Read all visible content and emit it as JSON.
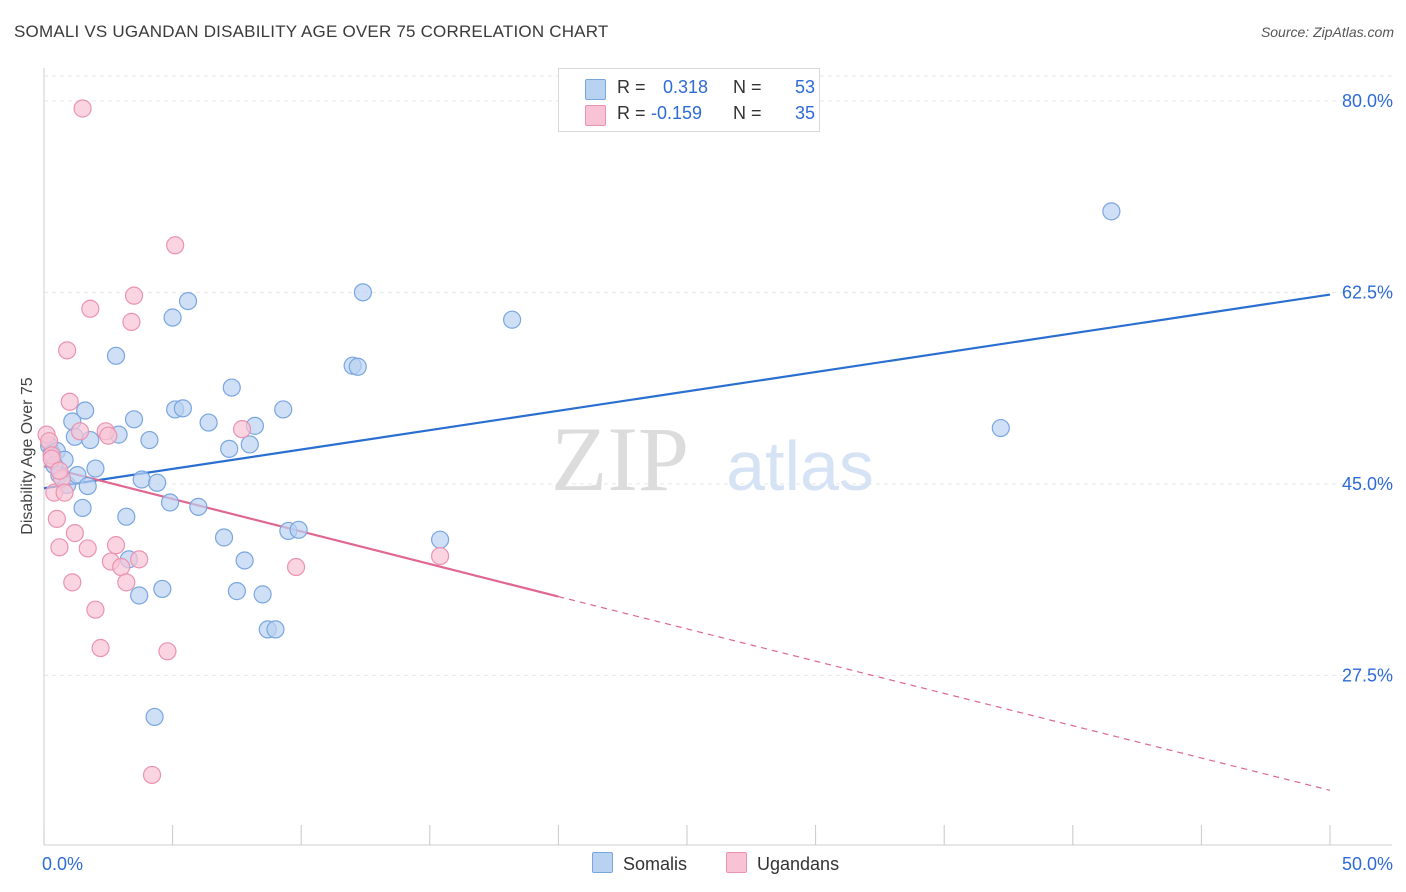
{
  "title": "SOMALI VS UGANDAN DISABILITY AGE OVER 75 CORRELATION CHART",
  "source": "Source: ZipAtlas.com",
  "watermark": {
    "zip": "ZIP",
    "atlas": "atlas"
  },
  "legend_top": {
    "r_label": "R =",
    "n_label": "N =",
    "rows": [
      {
        "r": "0.318",
        "n": "53"
      },
      {
        "r": "-0.159",
        "n": "35"
      }
    ]
  },
  "legend_bottom": [
    {
      "label": "Somalis"
    },
    {
      "label": "Ugandans"
    }
  ],
  "colors": {
    "somali_fill": "#b9d2f2",
    "somali_stroke": "#7aa6e0",
    "somali_line": "#2a6fd0",
    "ugandan_fill": "#f8c3d4",
    "ugandan_stroke": "#ea93b0",
    "ugandan_line": "#e0678f",
    "tick_text": "#2f6bd6",
    "grid": "#e6e6e6"
  },
  "chart_data": {
    "type": "scatter",
    "title": "SOMALI VS UGANDAN DISABILITY AGE OVER 75 CORRELATION CHART",
    "xlabel": "",
    "ylabel": "Disability Age Over 75",
    "xlim": [
      0,
      50
    ],
    "ylim": [
      12,
      83
    ],
    "x_tick_labels": [
      {
        "value": 0,
        "label": "0.0%"
      },
      {
        "value": 50,
        "label": "50.0%"
      }
    ],
    "y_tick_labels": [
      {
        "value": 80,
        "label": "80.0%"
      },
      {
        "value": 62.5,
        "label": "62.5%"
      },
      {
        "value": 45,
        "label": "45.0%"
      },
      {
        "value": 27.5,
        "label": "27.5%"
      }
    ],
    "x_minor_ticks": [
      0,
      5,
      10,
      15,
      20,
      25,
      30,
      35,
      40,
      45,
      50
    ],
    "series": [
      {
        "name": "Somalis",
        "r": 0.318,
        "n": 53,
        "trend": {
          "x": [
            0,
            50
          ],
          "y": [
            44.6,
            62.3
          ],
          "dashed_to": null
        },
        "points": [
          [
            0.2,
            48.5
          ],
          [
            0.3,
            47.8
          ],
          [
            0.5,
            48.0
          ],
          [
            0.6,
            45.8
          ],
          [
            0.8,
            47.2
          ],
          [
            0.9,
            44.9
          ],
          [
            1.1,
            50.7
          ],
          [
            1.2,
            49.3
          ],
          [
            1.3,
            45.8
          ],
          [
            1.5,
            42.8
          ],
          [
            1.6,
            51.7
          ],
          [
            1.7,
            44.8
          ],
          [
            1.8,
            49.0
          ],
          [
            2.0,
            46.4
          ],
          [
            2.8,
            56.7
          ],
          [
            2.9,
            49.5
          ],
          [
            3.2,
            42.0
          ],
          [
            3.3,
            38.1
          ],
          [
            3.5,
            50.9
          ],
          [
            3.7,
            34.8
          ],
          [
            3.8,
            45.4
          ],
          [
            4.1,
            49.0
          ],
          [
            4.3,
            23.7
          ],
          [
            4.4,
            45.1
          ],
          [
            4.6,
            35.4
          ],
          [
            4.9,
            43.3
          ],
          [
            5.0,
            60.2
          ],
          [
            5.1,
            51.8
          ],
          [
            5.4,
            51.9
          ],
          [
            5.6,
            61.7
          ],
          [
            6.0,
            42.9
          ],
          [
            6.4,
            50.6
          ],
          [
            7.0,
            40.1
          ],
          [
            7.2,
            48.2
          ],
          [
            7.3,
            53.8
          ],
          [
            7.5,
            35.2
          ],
          [
            7.8,
            38.0
          ],
          [
            8.0,
            48.6
          ],
          [
            8.2,
            50.3
          ],
          [
            8.5,
            34.9
          ],
          [
            8.7,
            31.7
          ],
          [
            9.0,
            31.7
          ],
          [
            9.3,
            51.8
          ],
          [
            9.5,
            40.7
          ],
          [
            9.9,
            40.8
          ],
          [
            12.0,
            55.8
          ],
          [
            12.2,
            55.7
          ],
          [
            12.4,
            62.5
          ],
          [
            15.4,
            39.9
          ],
          [
            18.2,
            60.0
          ],
          [
            37.2,
            50.1
          ],
          [
            41.5,
            69.9
          ],
          [
            0.4,
            46.7
          ]
        ]
      },
      {
        "name": "Ugandans",
        "r": -0.159,
        "n": 35,
        "trend": {
          "x": [
            0,
            20
          ],
          "y": [
            46.6,
            34.7
          ],
          "dashed_to": {
            "x": 50,
            "y": 17.0
          }
        },
        "points": [
          [
            0.1,
            49.5
          ],
          [
            0.2,
            48.9
          ],
          [
            0.3,
            47.6
          ],
          [
            0.4,
            44.2
          ],
          [
            0.5,
            41.8
          ],
          [
            0.6,
            39.2
          ],
          [
            0.7,
            45.5
          ],
          [
            0.8,
            44.2
          ],
          [
            0.9,
            57.2
          ],
          [
            1.0,
            52.5
          ],
          [
            1.1,
            36.0
          ],
          [
            1.2,
            40.5
          ],
          [
            1.4,
            49.8
          ],
          [
            1.7,
            39.1
          ],
          [
            1.8,
            61.0
          ],
          [
            2.0,
            33.5
          ],
          [
            2.2,
            30.0
          ],
          [
            2.4,
            49.8
          ],
          [
            2.6,
            37.9
          ],
          [
            2.8,
            39.4
          ],
          [
            3.0,
            37.4
          ],
          [
            3.2,
            36.0
          ],
          [
            3.4,
            59.8
          ],
          [
            3.5,
            62.2
          ],
          [
            3.7,
            38.1
          ],
          [
            4.2,
            18.4
          ],
          [
            4.8,
            29.7
          ],
          [
            5.1,
            66.8
          ],
          [
            7.7,
            50.0
          ],
          [
            9.8,
            37.4
          ],
          [
            15.4,
            38.4
          ],
          [
            1.5,
            79.3
          ],
          [
            0.3,
            47.3
          ],
          [
            0.6,
            46.2
          ],
          [
            2.5,
            49.4
          ]
        ]
      }
    ]
  }
}
